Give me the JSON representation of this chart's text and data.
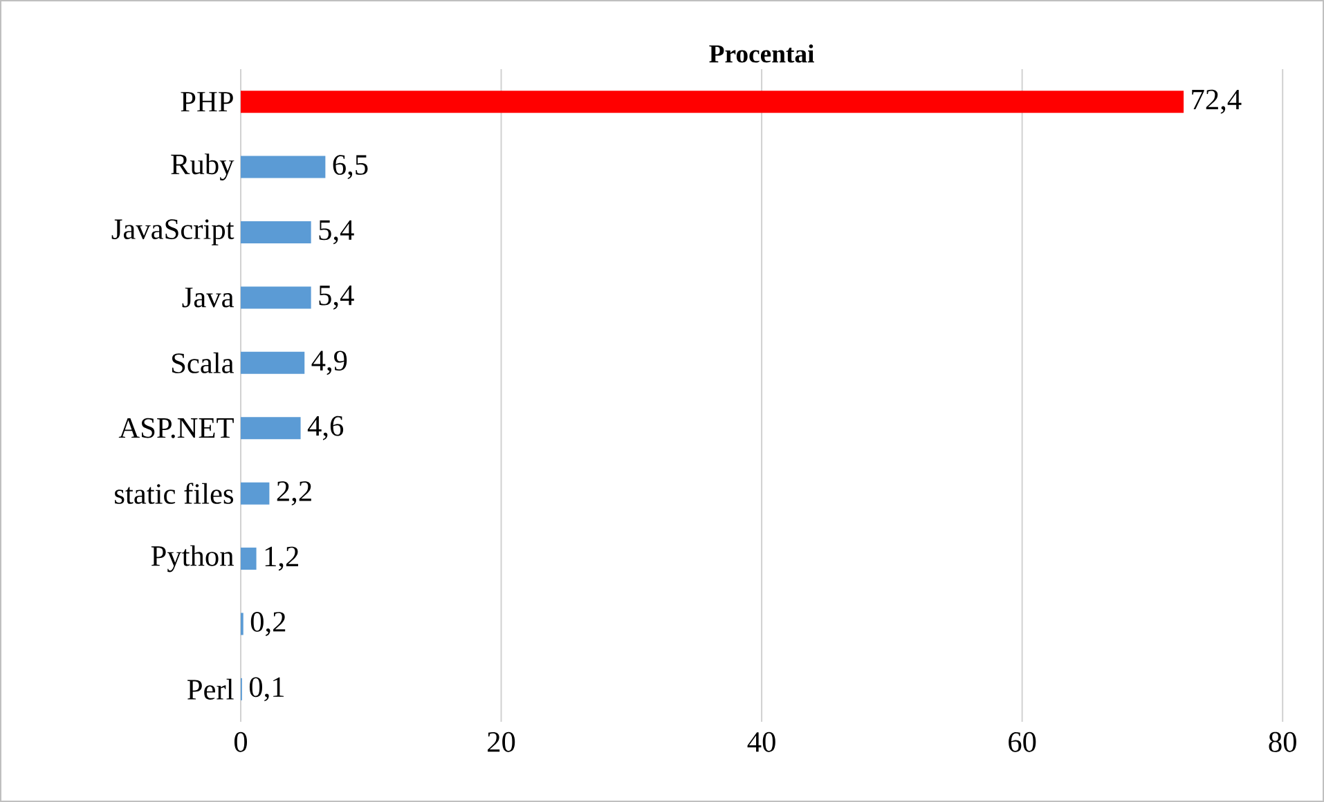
{
  "chart_data": {
    "type": "bar",
    "orientation": "horizontal",
    "title": "Procentai",
    "categories": [
      "PHP",
      "Ruby",
      "JavaScript",
      "Java",
      "Scala",
      "ASP.NET",
      "static files",
      "Python",
      null,
      "Perl"
    ],
    "values": [
      72.4,
      6.5,
      5.4,
      5.4,
      4.9,
      4.6,
      2.2,
      1.2,
      0.2,
      0.1
    ],
    "colors": [
      "#ff0000",
      "#5b9bd5",
      "#5b9bd5",
      "#5b9bd5",
      "#5b9bd5",
      "#5b9bd5",
      "#5b9bd5",
      "#5b9bd5",
      "#5b9bd5",
      "#5b9bd5"
    ],
    "value_labels": [
      "72,4",
      "6,5",
      "5,4",
      "5,4",
      "4,9",
      "4,6",
      "2,2",
      "1,2",
      "0,2",
      "0,1"
    ],
    "xlim": [
      0,
      80
    ],
    "xticks": [
      0,
      20,
      40,
      60,
      80
    ],
    "grid": "x"
  }
}
